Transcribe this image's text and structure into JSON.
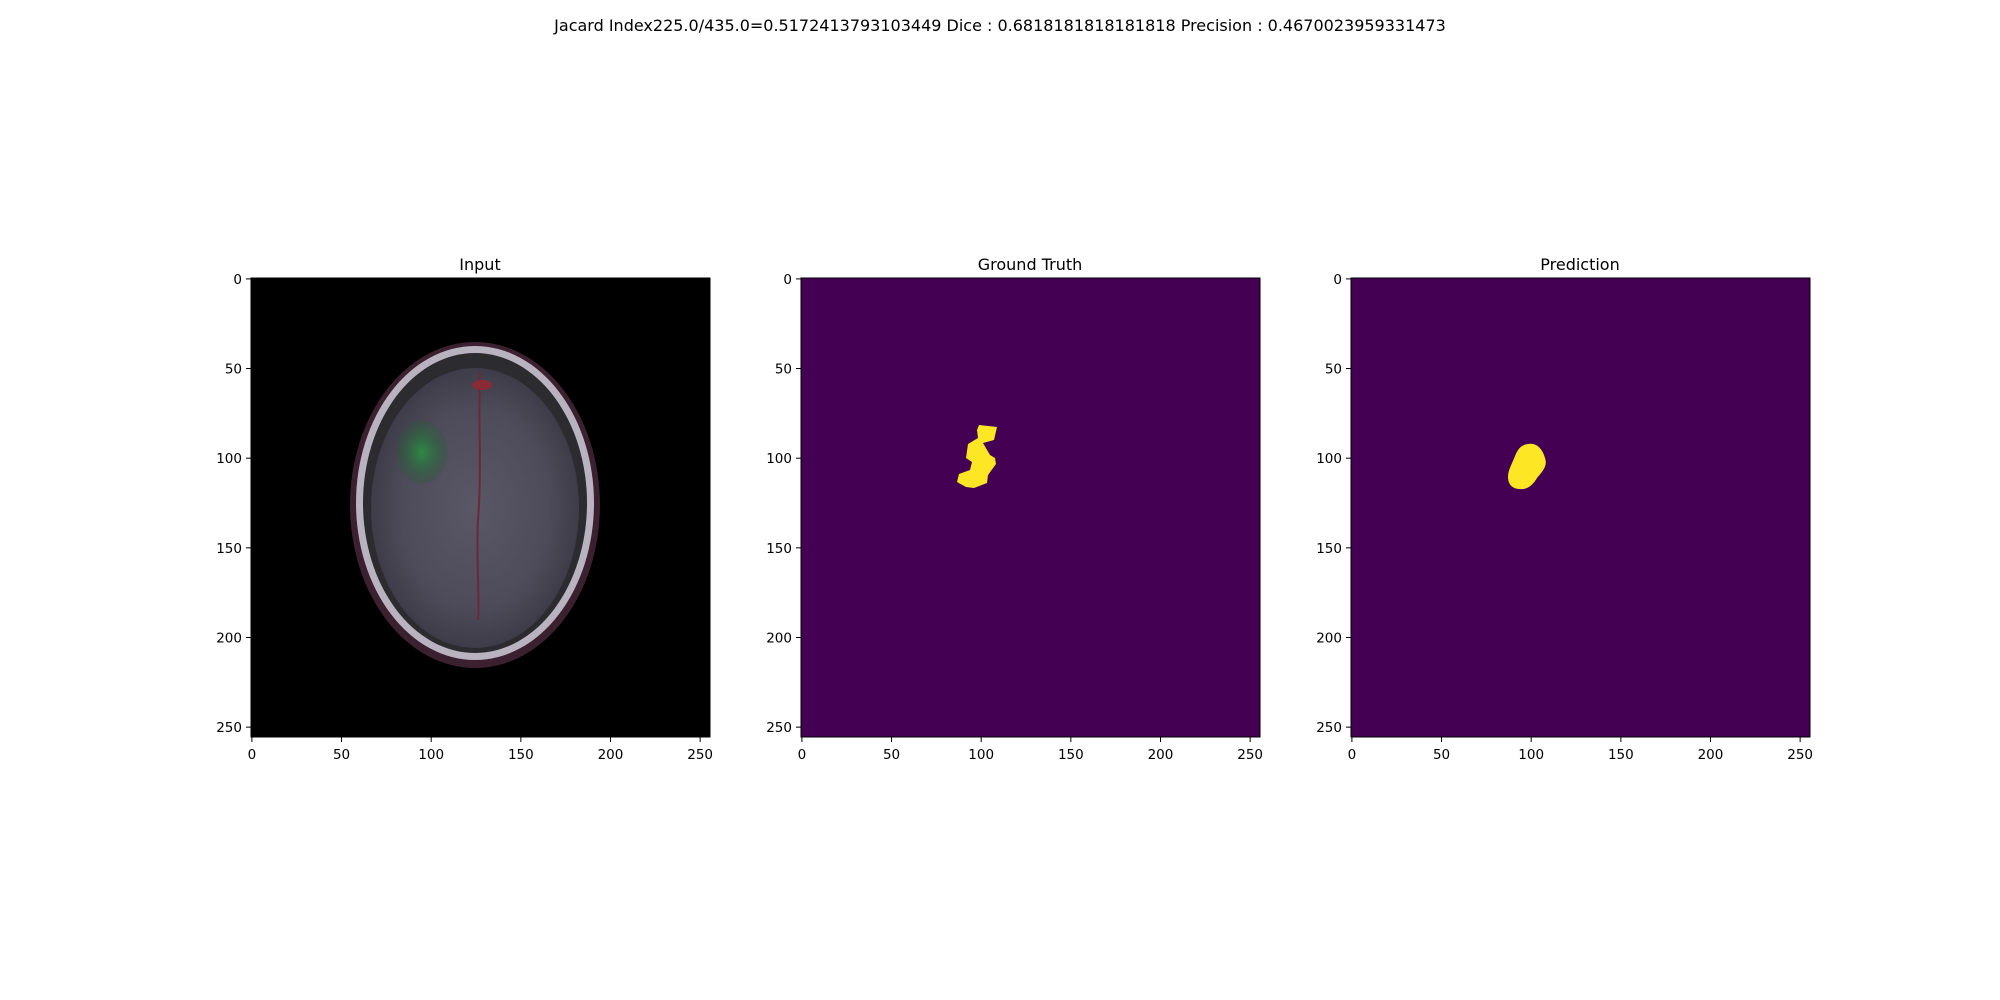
{
  "figure": {
    "suptitle": "Jacard Index225.0/435.0=0.5172413793103449 Dice : 0.6818181818181818 Precision : 0.4670023959331473"
  },
  "panels": [
    {
      "title": "Input",
      "kind": "mri-slice"
    },
    {
      "title": "Ground Truth",
      "kind": "mask"
    },
    {
      "title": "Prediction",
      "kind": "mask"
    }
  ],
  "axes": {
    "x_ticks": [
      "0",
      "50",
      "100",
      "150",
      "200",
      "250"
    ],
    "y_ticks": [
      "0",
      "50",
      "100",
      "150",
      "200",
      "250"
    ],
    "image_size": [
      256,
      256
    ]
  },
  "colors": {
    "mask_background": "#440154",
    "mask_foreground": "#fde725",
    "image_background": "#000000"
  }
}
